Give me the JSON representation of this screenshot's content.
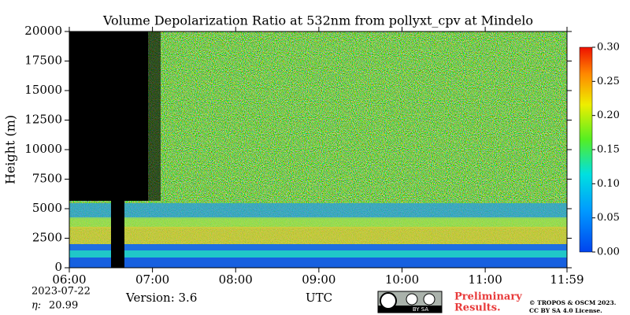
{
  "chart_data": {
    "type": "heatmap",
    "title": "Volume Depolarization Ratio at 532nm from pollyxt_cpv at Mindelo",
    "ylabel": "Height (m)",
    "xlabel": "UTC",
    "xlim": [
      6,
      11.9833
    ],
    "xticks": [
      {
        "value": 6,
        "label": "06:00"
      },
      {
        "value": 7,
        "label": "07:00"
      },
      {
        "value": 8,
        "label": "08:00"
      },
      {
        "value": 9,
        "label": "09:00"
      },
      {
        "value": 10,
        "label": "10:00"
      },
      {
        "value": 11,
        "label": "11:00"
      },
      {
        "value": 11.9833,
        "label": "11:59"
      }
    ],
    "ylim": [
      0,
      20000
    ],
    "yticks": [
      0,
      2500,
      5000,
      7500,
      10000,
      12500,
      15000,
      17500,
      20000
    ],
    "clim": [
      0,
      0.3
    ],
    "cticks": [
      {
        "value": 0,
        "label": "0.00"
      },
      {
        "value": 0.05,
        "label": "0.05"
      },
      {
        "value": 0.1,
        "label": "0.10"
      },
      {
        "value": 0.15,
        "label": "0.15"
      },
      {
        "value": 0.2,
        "label": "0.20"
      },
      {
        "value": 0.25,
        "label": "0.25"
      },
      {
        "value": 0.3,
        "label": "0.30"
      }
    ],
    "date": "2023-07-22",
    "eta": {
      "label": "η:",
      "value": 20.99
    },
    "version": "Version: 3.6",
    "license_badge": "BY SA",
    "notice": [
      "Preliminary",
      "Results."
    ],
    "copyright": [
      "© TROPOS & OSCM 2023.",
      "CC BY SA 4.0 License."
    ]
  }
}
